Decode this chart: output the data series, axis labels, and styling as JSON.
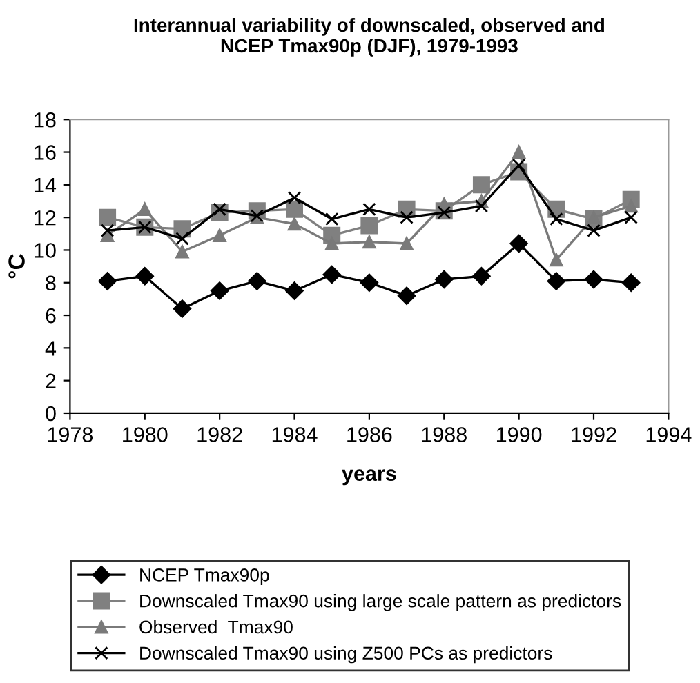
{
  "chart_data": {
    "type": "line",
    "title": "Interannual variability of downscaled, observed and\nNCEP Tmax90p (DJF), 1979-1993",
    "xlabel": "years",
    "ylabel": "°C",
    "x": [
      1979,
      1980,
      1981,
      1982,
      1983,
      1984,
      1985,
      1986,
      1987,
      1988,
      1989,
      1990,
      1991,
      1992,
      1993
    ],
    "series": [
      {
        "name": "NCEP Tmax90p",
        "color": "#000000",
        "marker": "diamond",
        "values": [
          8.1,
          8.4,
          6.4,
          7.5,
          8.1,
          7.5,
          8.5,
          8.0,
          7.2,
          8.2,
          8.4,
          10.4,
          8.1,
          8.2,
          8.0
        ]
      },
      {
        "name": "Downscaled Tmax90 using large scale pattern as predictors",
        "color": "#808080",
        "marker": "square",
        "values": [
          12.0,
          11.4,
          11.3,
          12.3,
          12.4,
          12.5,
          10.9,
          11.5,
          12.5,
          12.4,
          14.0,
          14.8,
          12.5,
          11.9,
          13.1
        ]
      },
      {
        "name": "Observed  Tmax90",
        "color": "#7a7a7a",
        "marker": "triangle",
        "values": [
          10.9,
          12.5,
          9.9,
          10.9,
          12.0,
          11.6,
          10.4,
          10.5,
          10.4,
          12.8,
          13.0,
          16.0,
          9.4,
          12.0,
          12.7
        ]
      },
      {
        "name": "Downscaled Tmax90 using Z500 PCs as predictors",
        "color": "#000000",
        "marker": "cross",
        "values": [
          11.2,
          11.4,
          10.7,
          12.5,
          12.1,
          13.2,
          11.9,
          12.5,
          12.0,
          12.3,
          12.7,
          15.2,
          11.9,
          11.2,
          12.0
        ]
      }
    ],
    "xlim": [
      1978,
      1994
    ],
    "xticks": [
      1978,
      1980,
      1982,
      1984,
      1986,
      1988,
      1990,
      1992,
      1994
    ],
    "ylim": [
      0,
      18
    ],
    "yticks": [
      0,
      2,
      4,
      6,
      8,
      10,
      12,
      14,
      16,
      18
    ],
    "grid": false,
    "legend": "bottom"
  }
}
